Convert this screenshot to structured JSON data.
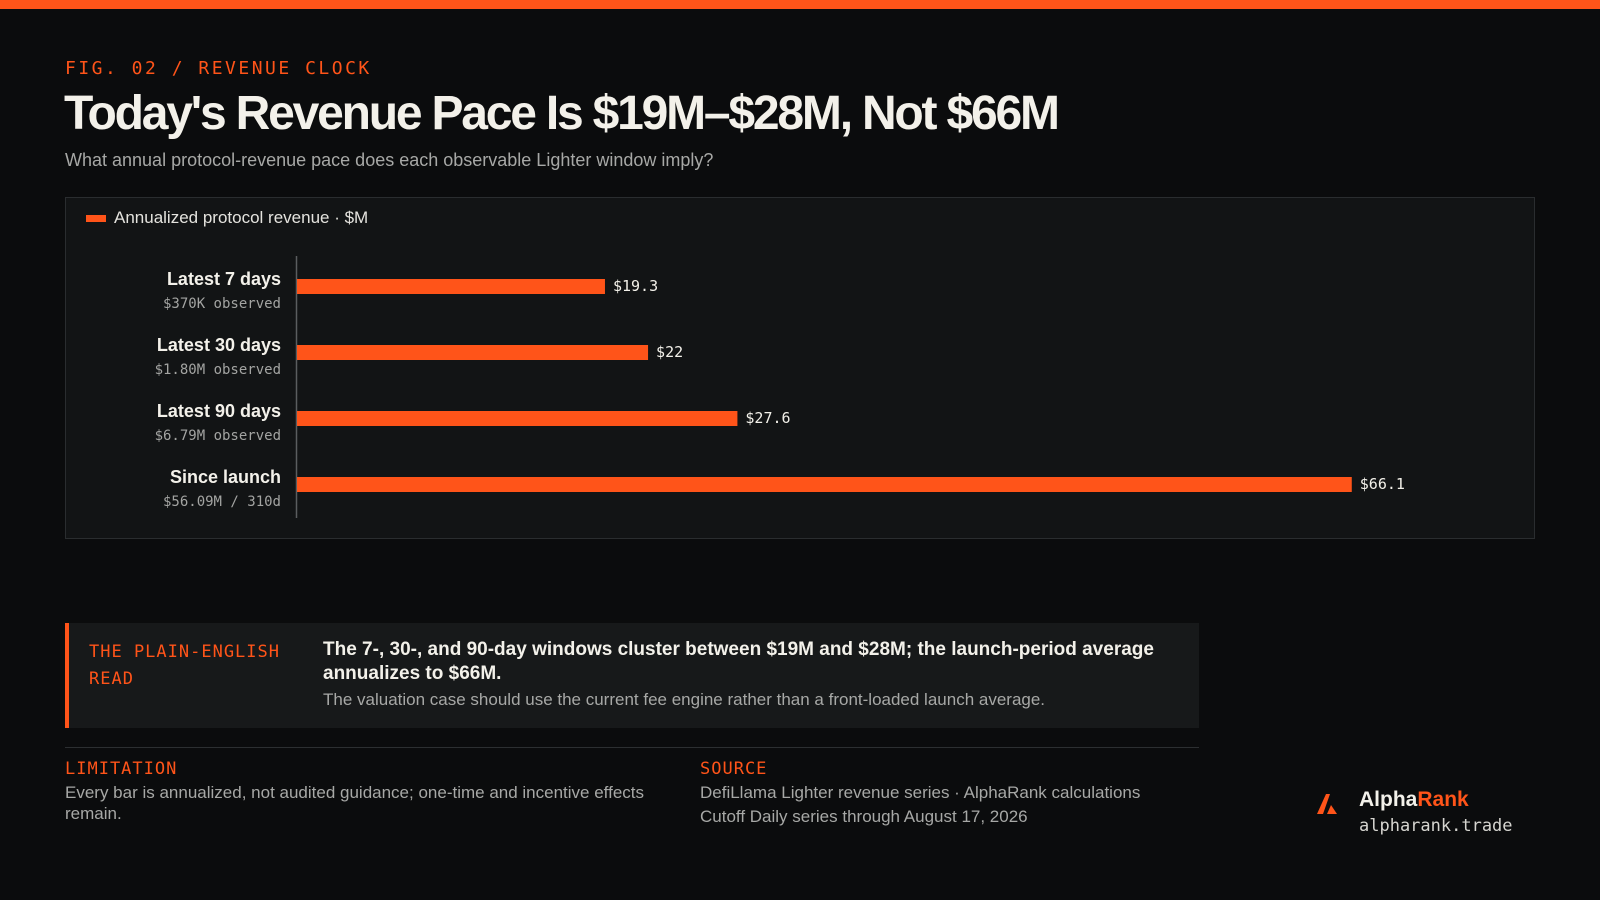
{
  "header": {
    "eyebrow": "FIG. 02 / REVENUE CLOCK",
    "title": "Today's Revenue Pace Is $19M–$28M, Not $66M",
    "subtitle": "What annual protocol-revenue pace does each observable Lighter window imply?"
  },
  "chart_data": {
    "type": "bar",
    "orientation": "horizontal",
    "title": "Today's Revenue Pace Is $19M–$28M, Not $66M",
    "legend": "Annualized protocol revenue · $M",
    "legend_position": "top-left",
    "grid": false,
    "xlim": [
      0,
      70
    ],
    "categories": [
      "Latest 7 days",
      "Latest 30 days",
      "Latest 90 days",
      "Since launch"
    ],
    "category_notes": [
      "$370K observed",
      "$1.80M observed",
      "$6.79M observed",
      "$56.09M / 310d"
    ],
    "series": [
      {
        "name": "Annualized protocol revenue · $M",
        "values": [
          19.3,
          22,
          27.6,
          66.1
        ]
      }
    ],
    "value_labels": [
      "$19.3",
      "$22",
      "$27.6",
      "$66.1"
    ],
    "bar_color": "#ff5419"
  },
  "read": {
    "label": "THE PLAIN-ENGLISH READ",
    "headline": "The 7-, 30-, and 90-day windows cluster between $19M and $28M; the launch-period average annualizes to $66M.",
    "body": "The valuation case should use the current fee engine rather than a front-loaded launch average."
  },
  "footer": {
    "limitation_label": "LIMITATION",
    "limitation_text": "Every bar is annualized, not audited guidance; one-time and incentive effects remain.",
    "source_label": "SOURCE",
    "source_line1": "DefiLlama Lighter revenue series · AlphaRank calculations",
    "source_line2": "Cutoff Daily series through August 17, 2026"
  },
  "brand": {
    "name_part1": "Alpha",
    "name_part2": "Rank",
    "url": "alpharank.trade",
    "icon": "alpharank-logo-icon"
  },
  "colors": {
    "accent": "#ff5419",
    "background": "#0b0c0d",
    "panel": "#121415"
  }
}
